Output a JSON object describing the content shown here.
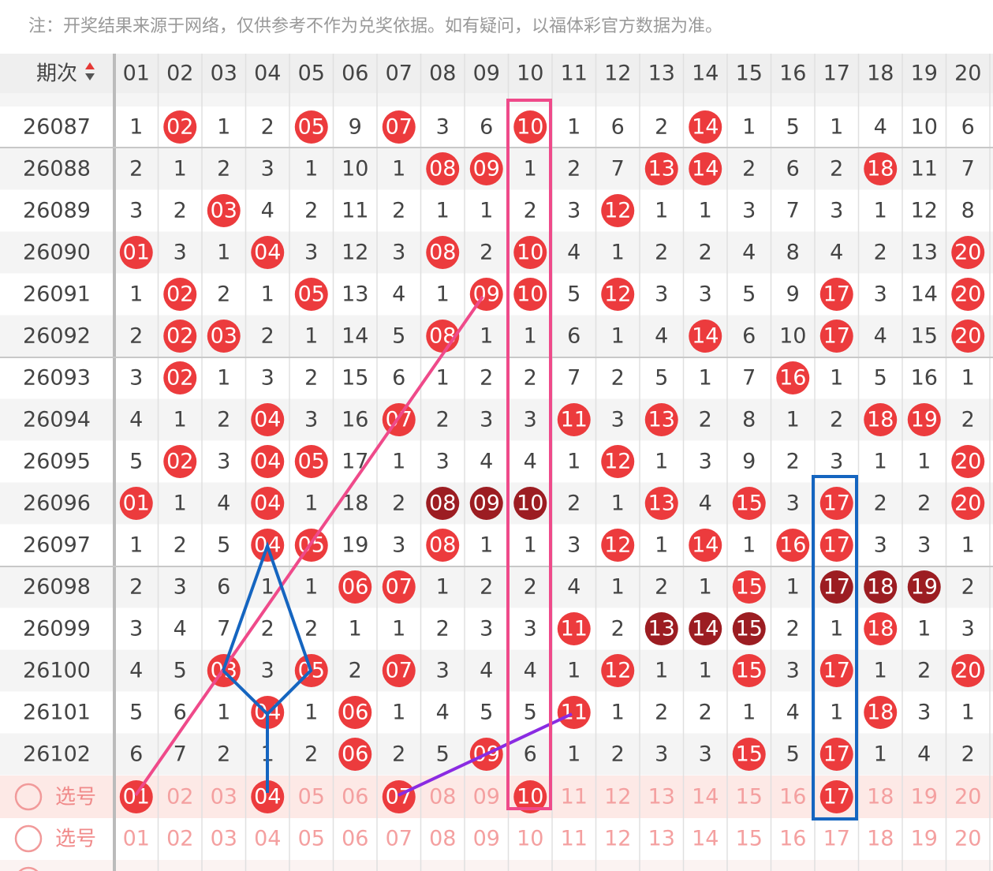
{
  "note": "注：开奖结果来源于网络，仅供参考不作为兑奖依据。如有疑问，以福体彩官方数据为准。",
  "table": {
    "header": {
      "period": "期次",
      "numbers": [
        "01",
        "02",
        "03",
        "04",
        "05",
        "06",
        "07",
        "08",
        "09",
        "10",
        "11",
        "12",
        "13",
        "14",
        "15",
        "16",
        "17",
        "18",
        "19",
        "20"
      ]
    },
    "rows": [
      {
        "period": "26087",
        "cells": [
          "1",
          {
            "text": "02",
            "ball": "#ec3b3d"
          },
          "1",
          "2",
          {
            "text": "05",
            "ball": "#ec3b3d"
          },
          "9",
          {
            "text": "07",
            "ball": "#ec3b3d"
          },
          "3",
          "6",
          {
            "text": "10",
            "ball": "#ec3b3d"
          },
          "1",
          "6",
          "2",
          {
            "text": "14",
            "ball": "#ec3b3d"
          },
          "1",
          "5",
          "1",
          "4",
          "10",
          "6"
        ]
      },
      {
        "period": "26088",
        "cells": [
          "2",
          "1",
          "2",
          "3",
          "1",
          "10",
          "1",
          {
            "text": "08",
            "ball": "#ec3b3d"
          },
          {
            "text": "09",
            "ball": "#ec3b3d"
          },
          "1",
          "2",
          "7",
          {
            "text": "13",
            "ball": "#ec3b3d"
          },
          {
            "text": "14",
            "ball": "#ec3b3d"
          },
          "2",
          "6",
          "2",
          {
            "text": "18",
            "ball": "#ec3b3d"
          },
          "11",
          "7"
        ]
      },
      {
        "period": "26089",
        "cells": [
          "3",
          "2",
          {
            "text": "03",
            "ball": "#ec3b3d"
          },
          "4",
          "2",
          "11",
          "2",
          "1",
          "1",
          "2",
          "3",
          {
            "text": "12",
            "ball": "#ec3b3d"
          },
          "1",
          "1",
          "3",
          "7",
          "3",
          "1",
          "12",
          "8"
        ]
      },
      {
        "period": "26090",
        "cells": [
          {
            "text": "01",
            "ball": "#ec3b3d"
          },
          "3",
          "1",
          {
            "text": "04",
            "ball": "#ec3b3d"
          },
          "3",
          "12",
          "3",
          {
            "text": "08",
            "ball": "#ec3b3d"
          },
          "2",
          {
            "text": "10",
            "ball": "#ec3b3d"
          },
          "4",
          "1",
          "2",
          "2",
          "4",
          "8",
          "4",
          "2",
          "13",
          {
            "text": "20",
            "ball": "#ec3b3d"
          }
        ]
      },
      {
        "period": "26091",
        "cells": [
          "1",
          {
            "text": "02",
            "ball": "#ec3b3d"
          },
          "2",
          "1",
          {
            "text": "05",
            "ball": "#ec3b3d"
          },
          "13",
          "4",
          "1",
          {
            "text": "09",
            "ball": "#ec3b3d"
          },
          {
            "text": "10",
            "ball": "#ec3b3d"
          },
          "5",
          {
            "text": "12",
            "ball": "#ec3b3d"
          },
          "3",
          "3",
          "5",
          "9",
          {
            "text": "17",
            "ball": "#ec3b3d"
          },
          "3",
          "14",
          {
            "text": "20",
            "ball": "#ec3b3d"
          }
        ]
      },
      {
        "period": "26092",
        "cells": [
          "2",
          {
            "text": "02",
            "ball": "#ec3b3d"
          },
          {
            "text": "03",
            "ball": "#ec3b3d"
          },
          "2",
          "1",
          "14",
          "5",
          {
            "text": "08",
            "ball": "#ec3b3d"
          },
          "1",
          "1",
          "6",
          "1",
          "4",
          {
            "text": "14",
            "ball": "#ec3b3d"
          },
          "6",
          "10",
          {
            "text": "17",
            "ball": "#ec3b3d"
          },
          "4",
          "15",
          {
            "text": "20",
            "ball": "#ec3b3d"
          }
        ]
      },
      {
        "period": "26093",
        "cells": [
          "3",
          {
            "text": "02",
            "ball": "#ec3b3d"
          },
          "1",
          "3",
          "2",
          "15",
          "6",
          "1",
          "2",
          "2",
          "7",
          "2",
          "5",
          "1",
          "7",
          {
            "text": "16",
            "ball": "#ec3b3d"
          },
          "1",
          "5",
          "16",
          "1"
        ]
      },
      {
        "period": "26094",
        "cells": [
          "4",
          "1",
          "2",
          {
            "text": "04",
            "ball": "#ec3b3d"
          },
          "3",
          "16",
          {
            "text": "07",
            "ball": "#ec3b3d"
          },
          "2",
          "3",
          "3",
          {
            "text": "11",
            "ball": "#ec3b3d"
          },
          "3",
          {
            "text": "13",
            "ball": "#ec3b3d"
          },
          "2",
          "8",
          "1",
          "2",
          {
            "text": "18",
            "ball": "#ec3b3d"
          },
          {
            "text": "19",
            "ball": "#ec3b3d"
          },
          "2"
        ]
      },
      {
        "period": "26095",
        "cells": [
          "5",
          {
            "text": "02",
            "ball": "#ec3b3d"
          },
          "3",
          {
            "text": "04",
            "ball": "#ec3b3d"
          },
          {
            "text": "05",
            "ball": "#ec3b3d"
          },
          "17",
          "1",
          "3",
          "4",
          "4",
          "1",
          {
            "text": "12",
            "ball": "#ec3b3d"
          },
          "1",
          "3",
          "9",
          "2",
          "3",
          "1",
          "1",
          {
            "text": "20",
            "ball": "#ec3b3d"
          }
        ]
      },
      {
        "period": "26096",
        "cells": [
          {
            "text": "01",
            "ball": "#ec3b3d"
          },
          "1",
          "4",
          {
            "text": "04",
            "ball": "#ec3b3d"
          },
          "1",
          "18",
          "2",
          {
            "text": "08",
            "ball": "#9c1d22"
          },
          {
            "text": "09",
            "ball": "#9c1d22"
          },
          {
            "text": "10",
            "ball": "#9c1d22"
          },
          "2",
          "1",
          {
            "text": "13",
            "ball": "#ec3b3d"
          },
          "4",
          {
            "text": "15",
            "ball": "#ec3b3d"
          },
          "3",
          {
            "text": "17",
            "ball": "#ec3b3d"
          },
          "2",
          "2",
          {
            "text": "20",
            "ball": "#ec3b3d"
          }
        ]
      },
      {
        "period": "26097",
        "cells": [
          "1",
          "2",
          "5",
          {
            "text": "04",
            "ball": "#ec3b3d"
          },
          {
            "text": "05",
            "ball": "#ec3b3d"
          },
          "19",
          "3",
          {
            "text": "08",
            "ball": "#ec3b3d"
          },
          "1",
          "1",
          "3",
          {
            "text": "12",
            "ball": "#ec3b3d"
          },
          "1",
          {
            "text": "14",
            "ball": "#ec3b3d"
          },
          "1",
          {
            "text": "16",
            "ball": "#ec3b3d"
          },
          {
            "text": "17",
            "ball": "#ec3b3d"
          },
          "3",
          "3",
          "1"
        ]
      },
      {
        "period": "26098",
        "cells": [
          "2",
          "3",
          "6",
          "1",
          "1",
          {
            "text": "06",
            "ball": "#ec3b3d"
          },
          {
            "text": "07",
            "ball": "#ec3b3d"
          },
          "1",
          "2",
          "2",
          "4",
          "1",
          "2",
          "1",
          {
            "text": "15",
            "ball": "#ec3b3d"
          },
          "1",
          {
            "text": "17",
            "ball": "#9c1d22"
          },
          {
            "text": "18",
            "ball": "#9c1d22"
          },
          {
            "text": "19",
            "ball": "#9c1d22"
          },
          "2"
        ]
      },
      {
        "period": "26099",
        "cells": [
          "3",
          "4",
          "7",
          "2",
          "2",
          "1",
          "1",
          "2",
          "3",
          "3",
          {
            "text": "11",
            "ball": "#ec3b3d"
          },
          "2",
          {
            "text": "13",
            "ball": "#9c1d22"
          },
          {
            "text": "14",
            "ball": "#9c1d22"
          },
          {
            "text": "15",
            "ball": "#9c1d22"
          },
          "2",
          "1",
          {
            "text": "18",
            "ball": "#ec3b3d"
          },
          "1",
          "3"
        ]
      },
      {
        "period": "26100",
        "cells": [
          "4",
          "5",
          {
            "text": "03",
            "ball": "#ec3b3d"
          },
          "3",
          {
            "text": "05",
            "ball": "#ec3b3d"
          },
          "2",
          {
            "text": "07",
            "ball": "#ec3b3d"
          },
          "3",
          "4",
          "4",
          "1",
          {
            "text": "12",
            "ball": "#ec3b3d"
          },
          "1",
          "1",
          {
            "text": "15",
            "ball": "#ec3b3d"
          },
          "3",
          {
            "text": "17",
            "ball": "#ec3b3d"
          },
          "1",
          "2",
          {
            "text": "20",
            "ball": "#ec3b3d"
          }
        ]
      },
      {
        "period": "26101",
        "cells": [
          "5",
          "6",
          "1",
          {
            "text": "04",
            "ball": "#ec3b3d"
          },
          "1",
          {
            "text": "06",
            "ball": "#ec3b3d"
          },
          "1",
          "4",
          "5",
          "5",
          {
            "text": "11",
            "ball": "#ec3b3d"
          },
          "1",
          "2",
          "2",
          "1",
          "4",
          "1",
          {
            "text": "18",
            "ball": "#ec3b3d"
          },
          "3",
          "1"
        ]
      },
      {
        "period": "26102",
        "cells": [
          "6",
          "7",
          "2",
          "1",
          "2",
          {
            "text": "06",
            "ball": "#ec3b3d"
          },
          "2",
          "5",
          {
            "text": "09",
            "ball": "#ec3b3d"
          },
          "6",
          "1",
          "2",
          "3",
          "3",
          {
            "text": "15",
            "ball": "#ec3b3d"
          },
          "5",
          {
            "text": "17",
            "ball": "#ec3b3d"
          },
          "1",
          "4",
          "2"
        ]
      }
    ]
  },
  "picker": [
    {
      "label": "选号",
      "cells": [
        {
          "text": "01",
          "ball": "#ec3b3d"
        },
        "02",
        "03",
        {
          "text": "04",
          "ball": "#ec3b3d"
        },
        "05",
        "06",
        {
          "text": "07",
          "ball": "#ec3b3d"
        },
        "08",
        "09",
        {
          "text": "10",
          "ball": "#ec3b3d"
        },
        "11",
        "12",
        "13",
        "14",
        "15",
        "16",
        {
          "text": "17",
          "ball": "#ec3b3d"
        },
        "18",
        "19",
        "20"
      ]
    },
    {
      "label": "选号",
      "cells": [
        "01",
        "02",
        "03",
        "04",
        "05",
        "06",
        "07",
        "08",
        "09",
        "10",
        "11",
        "12",
        "13",
        "14",
        "15",
        "16",
        "17",
        "18",
        "19",
        "20"
      ]
    }
  ]
}
